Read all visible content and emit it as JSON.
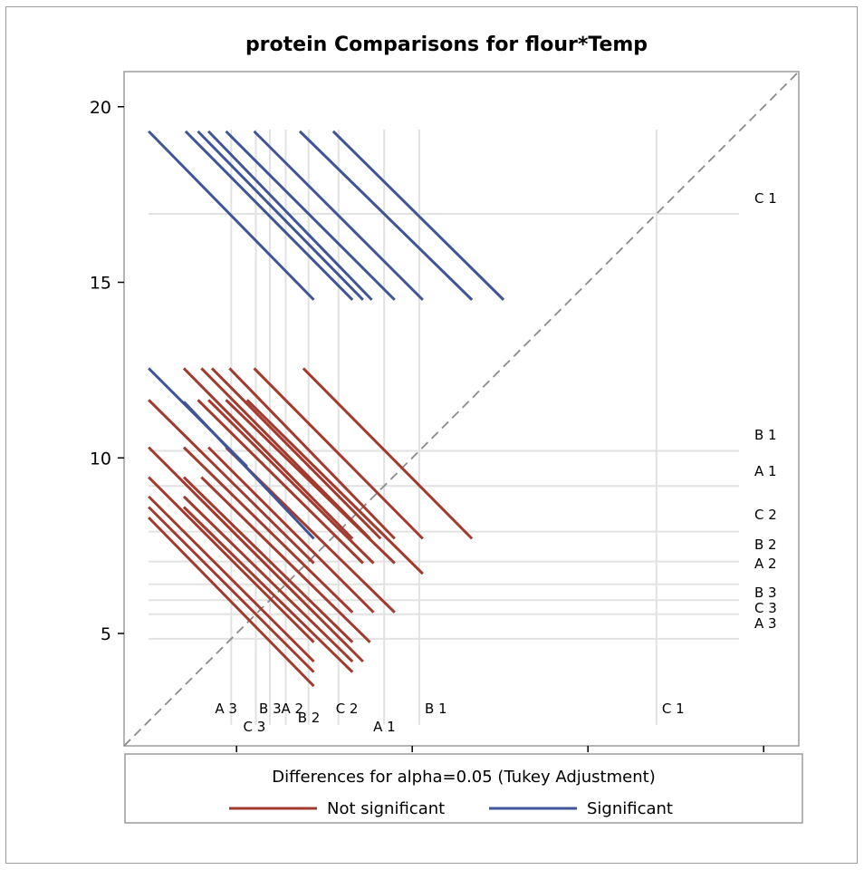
{
  "chart_data": {
    "type": "diffogram",
    "title": "protein Comparisons for flour*Temp",
    "xlim": [
      1.8,
      21.0
    ],
    "ylim": [
      1.8,
      21.0
    ],
    "x_ticks": [
      5,
      10,
      15,
      20
    ],
    "y_ticks": [
      5,
      10,
      15,
      20
    ],
    "reference_line": "diagonal dashed",
    "grid": false,
    "legend": {
      "title": "Differences for alpha=0.05 (Tukey Adjustment)",
      "items": [
        {
          "label": "Not significant",
          "color": "#a23a2e"
        },
        {
          "label": "Significant",
          "color": "#3f5597"
        }
      ]
    },
    "groups": [
      {
        "label": "A 3",
        "mean": 4.85
      },
      {
        "label": "C 3",
        "mean": 5.55
      },
      {
        "label": "B 3",
        "mean": 5.95
      },
      {
        "label": "A 2",
        "mean": 6.4
      },
      {
        "label": "B 2",
        "mean": 7.05
      },
      {
        "label": "C 2",
        "mean": 7.9
      },
      {
        "label": "A 1",
        "mean": 9.2
      },
      {
        "label": "B 1",
        "mean": 10.2
      },
      {
        "label": "C 1",
        "mean": 16.95
      }
    ],
    "significant_color": "#3f5597",
    "not_significant_color": "#a23a2e",
    "segments": {
      "significant": [
        {
          "x": [
            2.5,
            7.2
          ],
          "y": [
            19.3,
            14.5
          ]
        },
        {
          "x": [
            3.55,
            8.3
          ],
          "y": [
            19.3,
            14.5
          ]
        },
        {
          "x": [
            3.9,
            8.6
          ],
          "y": [
            19.3,
            14.5
          ]
        },
        {
          "x": [
            4.2,
            8.85
          ],
          "y": [
            19.3,
            14.5
          ]
        },
        {
          "x": [
            4.7,
            9.5
          ],
          "y": [
            19.3,
            14.5
          ]
        },
        {
          "x": [
            5.5,
            10.3
          ],
          "y": [
            19.3,
            14.5
          ]
        },
        {
          "x": [
            6.8,
            11.7
          ],
          "y": [
            19.3,
            14.5
          ]
        },
        {
          "x": [
            7.75,
            12.6
          ],
          "y": [
            19.3,
            14.5
          ]
        },
        {
          "x": [
            2.5,
            5.3
          ],
          "y": [
            12.55,
            9.75
          ]
        },
        {
          "x": [
            3.5,
            7.2
          ],
          "y": [
            11.6,
            7.7
          ]
        }
      ],
      "not_significant": [
        {
          "x": [
            3.5,
            8.3
          ],
          "y": [
            12.55,
            7.7
          ]
        },
        {
          "x": [
            4.0,
            8.8
          ],
          "y": [
            12.55,
            7.7
          ]
        },
        {
          "x": [
            4.3,
            9.1
          ],
          "y": [
            12.55,
            7.7
          ]
        },
        {
          "x": [
            4.8,
            9.5
          ],
          "y": [
            12.55,
            7.7
          ]
        },
        {
          "x": [
            5.5,
            10.3
          ],
          "y": [
            12.55,
            7.7
          ]
        },
        {
          "x": [
            6.9,
            11.7
          ],
          "y": [
            12.55,
            7.7
          ]
        },
        {
          "x": [
            5.3,
            10.3
          ],
          "y": [
            11.65,
            6.7
          ]
        },
        {
          "x": [
            2.5,
            7.2
          ],
          "y": [
            11.65,
            7.0
          ]
        },
        {
          "x": [
            3.9,
            8.6
          ],
          "y": [
            11.65,
            7.0
          ]
        },
        {
          "x": [
            4.2,
            8.9
          ],
          "y": [
            11.65,
            7.0
          ]
        },
        {
          "x": [
            4.7,
            9.5
          ],
          "y": [
            11.65,
            7.0
          ]
        },
        {
          "x": [
            2.5,
            7.2
          ],
          "y": [
            10.3,
            5.6
          ]
        },
        {
          "x": [
            3.5,
            8.3
          ],
          "y": [
            10.3,
            5.6
          ]
        },
        {
          "x": [
            4.2,
            8.9
          ],
          "y": [
            10.3,
            5.6
          ]
        },
        {
          "x": [
            4.7,
            9.5
          ],
          "y": [
            10.3,
            5.6
          ]
        },
        {
          "x": [
            2.5,
            7.2
          ],
          "y": [
            9.45,
            4.75
          ]
        },
        {
          "x": [
            3.5,
            8.3
          ],
          "y": [
            9.45,
            4.75
          ]
        },
        {
          "x": [
            4.0,
            8.8
          ],
          "y": [
            9.45,
            4.75
          ]
        },
        {
          "x": [
            2.5,
            7.2
          ],
          "y": [
            8.9,
            4.2
          ]
        },
        {
          "x": [
            3.5,
            8.3
          ],
          "y": [
            8.9,
            4.2
          ]
        },
        {
          "x": [
            3.9,
            8.6
          ],
          "y": [
            8.9,
            4.2
          ]
        },
        {
          "x": [
            2.5,
            7.2
          ],
          "y": [
            8.6,
            3.9
          ]
        },
        {
          "x": [
            3.5,
            8.3
          ],
          "y": [
            8.6,
            3.9
          ]
        },
        {
          "x": [
            2.5,
            7.2
          ],
          "y": [
            8.3,
            3.5
          ]
        }
      ]
    }
  }
}
